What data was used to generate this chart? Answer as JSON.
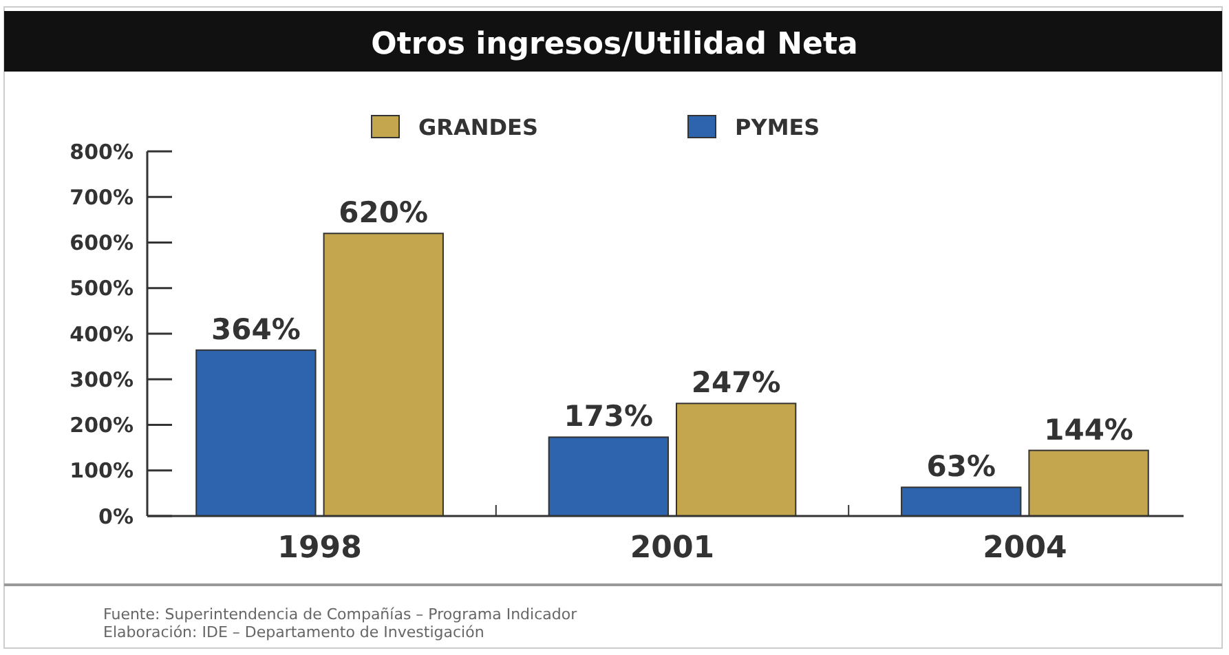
{
  "chart_data": {
    "type": "bar",
    "title": "Otros ingresos/Utilidad Neta",
    "categories": [
      "1998",
      "2001",
      "2004"
    ],
    "series": [
      {
        "name": "PYMES",
        "color": "#2e64ae",
        "values": [
          364,
          173,
          63
        ],
        "value_labels": [
          "364%",
          "173%",
          "63%"
        ]
      },
      {
        "name": "GRANDES",
        "color": "#c4a64e",
        "values": [
          620,
          247,
          144
        ],
        "value_labels": [
          "620%",
          "247%",
          "144%"
        ]
      }
    ],
    "ylim": [
      0,
      800
    ],
    "yticks": [
      {
        "value": 0,
        "label": "0%"
      },
      {
        "value": 100,
        "label": "100%"
      },
      {
        "value": 200,
        "label": "200%"
      },
      {
        "value": 300,
        "label": "300%"
      },
      {
        "value": 400,
        "label": "400%"
      },
      {
        "value": 500,
        "label": "500%"
      },
      {
        "value": 600,
        "label": "600%"
      },
      {
        "value": 700,
        "label": "700%"
      },
      {
        "value": 800,
        "label": "800%"
      }
    ],
    "legend": "top",
    "grid": false,
    "annotations": [
      "Fuente: Superintendencia de Compañías – Programa Indicador",
      "Elaboración: IDE – Departamento de Investigación"
    ]
  }
}
